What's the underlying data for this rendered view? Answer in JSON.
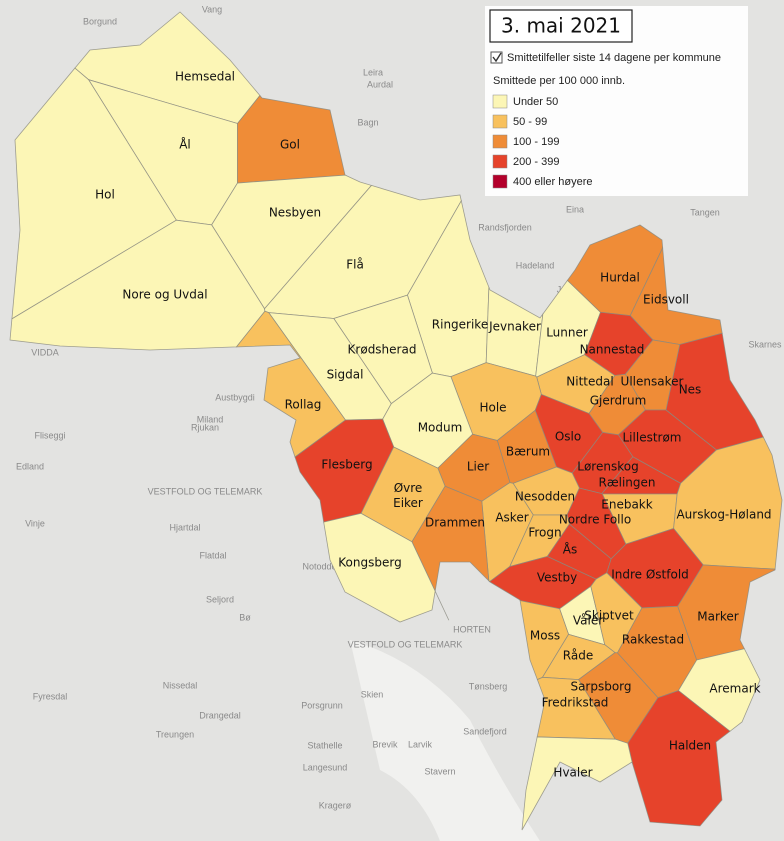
{
  "header": {
    "title": "3. mai 2021"
  },
  "legend": {
    "layer": "Smittetilfeller siste 14 dagene per kommune",
    "title": "Smittede per 100 000 innb.",
    "items": [
      {
        "label": "Under 50",
        "color": "#fcf6b6"
      },
      {
        "label": "50 - 99",
        "color": "#f8c15e"
      },
      {
        "label": "100 - 199",
        "color": "#ef8c37"
      },
      {
        "label": "200 - 399",
        "color": "#e6432b"
      },
      {
        "label": "400 eller høyere",
        "color": "#b3002b"
      }
    ]
  },
  "municipalities": [
    {
      "name": "Hemsedal",
      "color": "#fcf6b6"
    },
    {
      "name": "Ål",
      "color": "#fcf6b6"
    },
    {
      "name": "Gol",
      "color": "#ef8c37"
    },
    {
      "name": "Hol",
      "color": "#fcf6b6"
    },
    {
      "name": "Nesbyen",
      "color": "#fcf6b6"
    },
    {
      "name": "Nore og Uvdal",
      "color": "#fcf6b6"
    },
    {
      "name": "Flå",
      "color": "#fcf6b6"
    },
    {
      "name": "Ringerike",
      "color": "#fcf6b6"
    },
    {
      "name": "Jevnaker",
      "color": "#fcf6b6"
    },
    {
      "name": "Lunner",
      "color": "#fcf6b6"
    },
    {
      "name": "Hurdal",
      "color": "#ef8c37"
    },
    {
      "name": "Eidsvoll",
      "color": "#ef8c37"
    },
    {
      "name": "Nannestad",
      "color": "#e6432b"
    },
    {
      "name": "Nes",
      "color": "#e6432b"
    },
    {
      "name": "Krødsherad",
      "color": "#fcf6b6"
    },
    {
      "name": "Sigdal",
      "color": "#fcf6b6"
    },
    {
      "name": "Rollag",
      "color": "#f8c15e"
    },
    {
      "name": "Nittedal",
      "color": "#f8c15e"
    },
    {
      "name": "Ullensaker",
      "color": "#ef8c37"
    },
    {
      "name": "Gjerdrum",
      "color": "#ef8c37"
    },
    {
      "name": "Hole",
      "color": "#f8c15e"
    },
    {
      "name": "Modum",
      "color": "#fcf6b6"
    },
    {
      "name": "Oslo",
      "color": "#e6432b"
    },
    {
      "name": "Lillestrøm",
      "color": "#e6432b"
    },
    {
      "name": "Bærum",
      "color": "#ef8c37"
    },
    {
      "name": "Lier",
      "color": "#ef8c37"
    },
    {
      "name": "Flesberg",
      "color": "#e6432b"
    },
    {
      "name": "Lørenskog",
      "color": "#e6432b"
    },
    {
      "name": "Rælingen",
      "color": "#e6432b"
    },
    {
      "name": "Nesodden",
      "color": "#f8c15e"
    },
    {
      "name": "Øvre\nEiker",
      "color": "#f8c15e"
    },
    {
      "name": "Enebakk",
      "color": "#f8c15e"
    },
    {
      "name": "Aurskog-Høland",
      "color": "#f8c15e"
    },
    {
      "name": "Asker",
      "color": "#f8c15e"
    },
    {
      "name": "Nordre Follo",
      "color": "#e6432b"
    },
    {
      "name": "Drammen",
      "color": "#ef8c37"
    },
    {
      "name": "Frogn",
      "color": "#f8c15e"
    },
    {
      "name": "Ås",
      "color": "#e6432b"
    },
    {
      "name": "Kongsberg",
      "color": "#fcf6b6"
    },
    {
      "name": "Vestby",
      "color": "#e6432b"
    },
    {
      "name": "Indre Østfold",
      "color": "#e6432b"
    },
    {
      "name": "Våler",
      "color": "#fcf6b6"
    },
    {
      "name": "Skiptvet",
      "color": "#f8c15e"
    },
    {
      "name": "Marker",
      "color": "#ef8c37"
    },
    {
      "name": "Moss",
      "color": "#f8c15e"
    },
    {
      "name": "Råde",
      "color": "#f8c15e"
    },
    {
      "name": "Rakkestad",
      "color": "#ef8c37"
    },
    {
      "name": "Sarpsborg",
      "color": "#ef8c37"
    },
    {
      "name": "Aremark",
      "color": "#fcf6b6"
    },
    {
      "name": "Fredrikstad",
      "color": "#f8c15e"
    },
    {
      "name": "Halden",
      "color": "#e6432b"
    },
    {
      "name": "Hvaler",
      "color": "#fcf6b6"
    }
  ],
  "background_labels": [
    "VIDDA",
    "VESTFOLD OG TELEMARK",
    "VESTFOLD OG TELEMARK",
    "Rjukan",
    "Miland",
    "Austbygdi",
    "Fliseggi",
    "Edland",
    "Vinje",
    "Hjartdal",
    "Flatdal",
    "Seljord",
    "Bø",
    "Notodden",
    "Nissedal",
    "Drangedal",
    "Treungen",
    "Fyresdal",
    "Skien",
    "Porsgrunn",
    "Stathelle",
    "Langesund",
    "Brevik",
    "Larvik",
    "Stavern",
    "Kragerø",
    "Sandefjord",
    "Tønsberg",
    "HORTEN",
    "Bagn",
    "Aurdal",
    "Leira",
    "Eina",
    "Tangen",
    "Hadeland",
    "Randsfjorden",
    "Jaren",
    "Skarnes",
    "Vang",
    "Borgund"
  ]
}
